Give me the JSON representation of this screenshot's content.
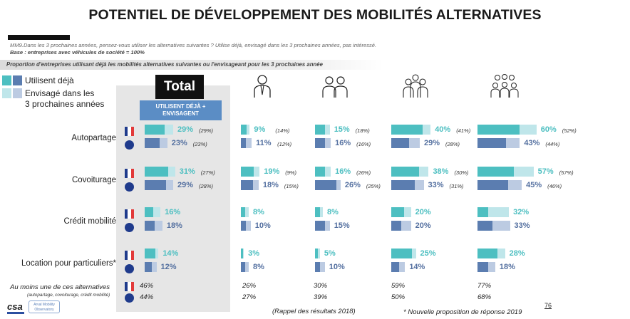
{
  "title": "POTENTIEL DE DÉVELOPPEMENT DES MOBILITÉS ALTERNATIVES",
  "question": "MM9.Dans les 3 prochaines années, pensez-vous utiliser les alternatives suivantes ? Utilise déjà, envisagé dans les 3 prochaines années, pas intéressé.",
  "base": "Base : entreprises avec véhicules de société = 100%",
  "subtitle": "Proportion d'entreprises utilisant déjà les mobilités alternatives suivantes ou l'envisageant pour les 3 prochaines année",
  "legend": {
    "utilisent": "Utilisent déjà",
    "envisage_line1": "Envisagé dans les",
    "envisage_line2": "3 prochaines années"
  },
  "total_label": "Total",
  "total_sub_line1": "UTILISENT DÉJÀ +",
  "total_sub_line2": "ENVISAGENT",
  "colors": {
    "teal": "#4dbfc1",
    "teal_light": "#bfe6ea",
    "blue": "#5b7db0",
    "blue_light": "#bccbe2",
    "flag_blue": "#1f3b8c",
    "flag_red": "#e23a3a"
  },
  "icons": [
    "one-person-icon",
    "two-people-icon",
    "group-icon",
    "large-group-icon"
  ],
  "bottom": {
    "label": "Au moins une de ces alternatives",
    "sub": "(autopartage, covoiturage, crédit mobilité)",
    "fr": [
      "46%",
      "26%",
      "30%",
      "59%",
      "77%"
    ],
    "eu": [
      "44%",
      "27%",
      "39%",
      "50%",
      "68%"
    ]
  },
  "footer": {
    "rappel": "(Rappel des résultats 2018)",
    "nouvelle": "* Nouvelle proposition de réponse 2019",
    "page": "76",
    "logo_csa": "csa",
    "logo_obs_line1": "Arval Mobility",
    "logo_obs_line2": "Observatory"
  },
  "chart_data": {
    "type": "bar",
    "orientation": "horizontal-stacked",
    "categories": [
      "Autopartage",
      "Covoiturage",
      "Crédit mobilité",
      "Location pour particuliers*"
    ],
    "groups": [
      "Total",
      "one-person-icon",
      "two-people-icon",
      "group-icon",
      "large-group-icon"
    ],
    "series": [
      {
        "name": "France",
        "color_dark": "#4dbfc1",
        "color_light": "#bfe6ea",
        "values": [
          [
            {
              "label": "29%",
              "used": 20,
              "ref": "(29%)"
            },
            {
              "label": "31%",
              "used": 24,
              "ref": "(27%)"
            },
            {
              "label": "16%",
              "used": 9,
              "ref": ""
            },
            {
              "label": "14%",
              "used": 11,
              "ref": ""
            }
          ],
          [
            {
              "label": "9%",
              "used": 6,
              "ref": "(14%)"
            },
            {
              "label": "19%",
              "used": 13,
              "ref": "(9%)"
            },
            {
              "label": "8%",
              "used": 4,
              "ref": ""
            },
            {
              "label": "3%",
              "used": 2,
              "ref": ""
            }
          ],
          [
            {
              "label": "15%",
              "used": 10,
              "ref": "(18%)"
            },
            {
              "label": "16%",
              "used": 10,
              "ref": "(26%)"
            },
            {
              "label": "8%",
              "used": 5,
              "ref": ""
            },
            {
              "label": "5%",
              "used": 3,
              "ref": ""
            }
          ],
          [
            {
              "label": "40%",
              "used": 32,
              "ref": "(41%)"
            },
            {
              "label": "38%",
              "used": 28,
              "ref": "(30%)"
            },
            {
              "label": "20%",
              "used": 13,
              "ref": ""
            },
            {
              "label": "25%",
              "used": 21,
              "ref": ""
            }
          ],
          [
            {
              "label": "60%",
              "used": 43,
              "ref": "(52%)"
            },
            {
              "label": "57%",
              "used": 37,
              "ref": "(57%)"
            },
            {
              "label": "32%",
              "used": 11,
              "ref": ""
            },
            {
              "label": "28%",
              "used": 20,
              "ref": ""
            }
          ]
        ]
      },
      {
        "name": "Europe",
        "color_dark": "#5b7db0",
        "color_light": "#bccbe2",
        "values": [
          [
            {
              "label": "23%",
              "used": 15,
              "ref": "(23%)"
            },
            {
              "label": "29%",
              "used": 22,
              "ref": "(28%)"
            },
            {
              "label": "18%",
              "used": 10,
              "ref": ""
            },
            {
              "label": "12%",
              "used": 7,
              "ref": ""
            }
          ],
          [
            {
              "label": "11%",
              "used": 5,
              "ref": "(12%)"
            },
            {
              "label": "18%",
              "used": 12,
              "ref": "(15%)"
            },
            {
              "label": "10%",
              "used": 5,
              "ref": ""
            },
            {
              "label": "8%",
              "used": 4,
              "ref": ""
            }
          ],
          [
            {
              "label": "16%",
              "used": 10,
              "ref": "(16%)"
            },
            {
              "label": "26%",
              "used": 22,
              "ref": "(25%)"
            },
            {
              "label": "15%",
              "used": 10,
              "ref": ""
            },
            {
              "label": "10%",
              "used": 5,
              "ref": ""
            }
          ],
          [
            {
              "label": "29%",
              "used": 18,
              "ref": "(28%)"
            },
            {
              "label": "33%",
              "used": 24,
              "ref": "(31%)"
            },
            {
              "label": "20%",
              "used": 10,
              "ref": ""
            },
            {
              "label": "14%",
              "used": 8,
              "ref": ""
            }
          ],
          [
            {
              "label": "43%",
              "used": 29,
              "ref": "(44%)"
            },
            {
              "label": "45%",
              "used": 31,
              "ref": "(46%)"
            },
            {
              "label": "33%",
              "used": 15,
              "ref": ""
            },
            {
              "label": "18%",
              "used": 11,
              "ref": ""
            }
          ]
        ]
      }
    ]
  }
}
